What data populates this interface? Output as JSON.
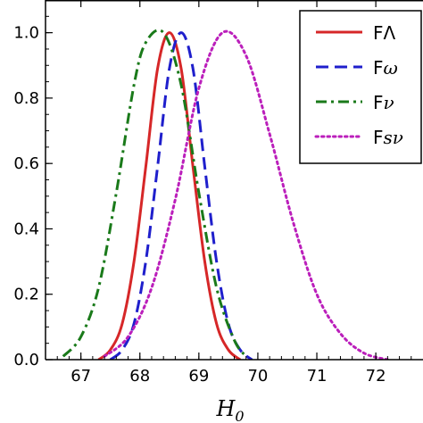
{
  "chart_data": {
    "type": "line",
    "title": "",
    "xlabel": "H",
    "xlabel_sub": "0",
    "ylabel": "",
    "xlim": [
      66.4,
      72.8
    ],
    "ylim": [
      0.0,
      1.1
    ],
    "xticks": [
      67,
      68,
      69,
      70,
      71,
      72
    ],
    "xtick_labels": [
      "67",
      "68",
      "69",
      "70",
      "71",
      "72"
    ],
    "yticks": [
      0.0,
      0.2,
      0.4,
      0.6,
      0.8,
      1.0
    ],
    "ytick_labels": [
      "0.0",
      "0.2",
      "0.4",
      "0.6",
      "0.8",
      "1.0"
    ],
    "grid": false,
    "legend_position": "top-right",
    "series": [
      {
        "name": "FΛ",
        "legend_prefix": "F",
        "legend_symbol": "Λ",
        "color": "#d62728",
        "style": "solid",
        "x": [
          67.3,
          67.5,
          67.7,
          67.9,
          68.1,
          68.3,
          68.5,
          68.7,
          68.9,
          69.1,
          69.3,
          69.5,
          69.7
        ],
        "y": [
          0.0,
          0.03,
          0.11,
          0.3,
          0.59,
          0.89,
          1.0,
          0.89,
          0.59,
          0.3,
          0.11,
          0.03,
          0.0
        ]
      },
      {
        "name": "Fω",
        "legend_prefix": "F",
        "legend_symbol": "ω",
        "color": "#1f1fcc",
        "style": "dashed",
        "x": [
          67.5,
          67.7,
          67.9,
          68.1,
          68.3,
          68.5,
          68.7,
          68.9,
          69.1,
          69.3,
          69.5,
          69.7,
          69.9
        ],
        "y": [
          0.0,
          0.03,
          0.11,
          0.3,
          0.59,
          0.89,
          1.0,
          0.89,
          0.59,
          0.3,
          0.11,
          0.03,
          0.0
        ]
      },
      {
        "name": "Fν",
        "legend_prefix": "F",
        "legend_symbol": "ν",
        "color": "#1a7a1a",
        "style": "dashdot",
        "x": [
          66.7,
          67.0,
          67.3,
          67.6,
          67.9,
          68.1,
          68.4,
          68.7,
          69.0,
          69.3,
          69.6,
          69.8
        ],
        "y": [
          0.01,
          0.07,
          0.22,
          0.51,
          0.84,
          0.97,
          1.0,
          0.84,
          0.51,
          0.22,
          0.06,
          0.01
        ]
      },
      {
        "name": "Fsν",
        "legend_prefix": "F",
        "legend_symbol": "sν",
        "color": "#bb1fbb",
        "style": "dotted",
        "x": [
          67.4,
          67.8,
          68.2,
          68.6,
          69.0,
          69.4,
          69.8,
          70.2,
          70.6,
          71.0,
          71.4,
          71.8,
          72.2
        ],
        "y": [
          0.01,
          0.07,
          0.22,
          0.49,
          0.83,
          1.0,
          0.93,
          0.69,
          0.42,
          0.2,
          0.08,
          0.02,
          0.0
        ]
      }
    ]
  }
}
